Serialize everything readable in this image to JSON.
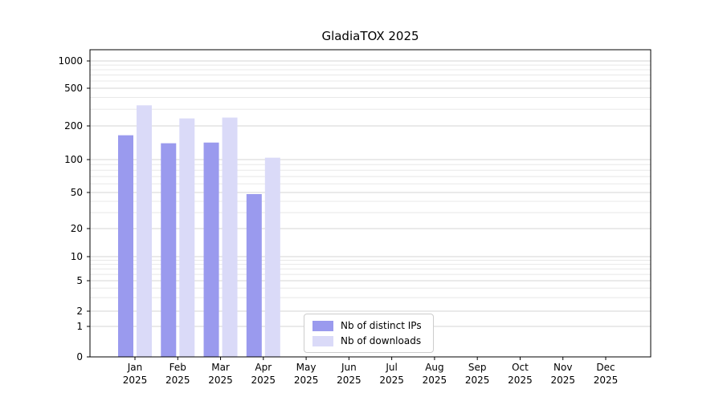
{
  "title": "GladiaTOX 2025",
  "colors": {
    "distinct_ips_bar": "#9a9aee",
    "downloads_bar": "#dadaf8",
    "grid_major": "#d4d4d4",
    "grid_minor": "#e8e8e8",
    "axis": "#000000",
    "background": "#ffffff"
  },
  "legend": {
    "entries": [
      {
        "label": "Nb of distinct IPs",
        "color": "#9a9aee"
      },
      {
        "label": "Nb of downloads",
        "color": "#dadaf8"
      }
    ]
  },
  "chart_data": {
    "type": "bar",
    "title": "GladiaTOX 2025",
    "year": "2025",
    "categories": [
      "Jan",
      "Feb",
      "Mar",
      "Apr",
      "May",
      "Jun",
      "Jul",
      "Aug",
      "Sep",
      "Oct",
      "Nov",
      "Dec"
    ],
    "series": [
      {
        "name": "Nb of distinct IPs",
        "color": "#9a9aee",
        "values": [
          165,
          140,
          142,
          48,
          0,
          0,
          0,
          0,
          0,
          0,
          0,
          0
        ]
      },
      {
        "name": "Nb of downloads",
        "color": "#dadaf8",
        "values": [
          330,
          240,
          245,
          104,
          0,
          0,
          0,
          0,
          0,
          0,
          0,
          0
        ]
      }
    ],
    "yscale": "symlog",
    "y_ticks": [
      0,
      1,
      2,
      5,
      10,
      20,
      50,
      100,
      200,
      500,
      1000
    ],
    "ylim": [
      0,
      1400
    ],
    "grid": true,
    "legend_position": "lower center"
  }
}
